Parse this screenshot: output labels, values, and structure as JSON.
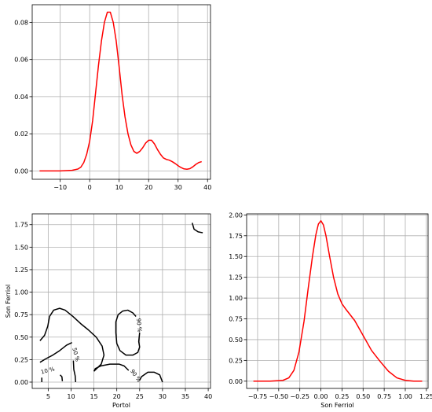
{
  "chart_data": [
    {
      "type": "line",
      "title": "",
      "xlabel": "",
      "ylabel": "",
      "xlim": [
        -19.5,
        41
      ],
      "ylim": [
        -0.0045,
        0.0895
      ],
      "xticks": [
        -10,
        0,
        10,
        20,
        30,
        40
      ],
      "yticks": [
        0.0,
        0.02,
        0.04,
        0.06,
        0.08
      ],
      "xtick_labels": [
        "−10",
        "0",
        "10",
        "20",
        "30",
        "40"
      ],
      "ytick_labels": [
        "0.00",
        "0.02",
        "0.04",
        "0.06",
        "0.08"
      ],
      "grid": true,
      "color": "#ff0000",
      "series": [
        {
          "x": [
            -17,
            -10,
            -6,
            -4,
            -3,
            -2,
            -1,
            0,
            1,
            2,
            3,
            4,
            5,
            6,
            7,
            8,
            9,
            10,
            11,
            12,
            13,
            14,
            15,
            16,
            17,
            18,
            19,
            20,
            21,
            22,
            23,
            24,
            25,
            26,
            27,
            28,
            29,
            30,
            31,
            32,
            33,
            34,
            35,
            36,
            37,
            38
          ],
          "y": [
            0.0,
            0.0,
            0.0003,
            0.001,
            0.002,
            0.0045,
            0.009,
            0.016,
            0.027,
            0.042,
            0.057,
            0.07,
            0.08,
            0.0855,
            0.0855,
            0.08,
            0.07,
            0.056,
            0.041,
            0.029,
            0.02,
            0.014,
            0.0105,
            0.0095,
            0.0105,
            0.0125,
            0.015,
            0.0165,
            0.0165,
            0.0145,
            0.0115,
            0.009,
            0.007,
            0.0062,
            0.0058,
            0.005,
            0.004,
            0.0028,
            0.0018,
            0.0011,
            0.0009,
            0.0012,
            0.0022,
            0.0035,
            0.0045,
            0.005
          ]
        }
      ]
    },
    {
      "type": "contour",
      "title": "",
      "xlabel": "Portol",
      "ylabel": "Son Ferriol",
      "xlim": [
        1.5,
        40.5
      ],
      "ylim": [
        -0.07,
        1.87
      ],
      "xticks": [
        5,
        10,
        15,
        20,
        25,
        30,
        35,
        40
      ],
      "yticks": [
        0.0,
        0.25,
        0.5,
        0.75,
        1.0,
        1.25,
        1.5,
        1.75
      ],
      "xtick_labels": [
        "5",
        "10",
        "15",
        "20",
        "25",
        "30",
        "35",
        "40"
      ],
      "ytick_labels": [
        "0.00",
        "0.25",
        "0.50",
        "0.75",
        "1.00",
        "1.25",
        "1.50",
        "1.75"
      ],
      "grid": true,
      "color": "#000000",
      "contours": [
        {
          "points": [
            [
              3.2,
              0.46
            ],
            [
              4.2,
              0.52
            ],
            [
              4.9,
              0.62
            ],
            [
              5.3,
              0.73
            ],
            [
              6.2,
              0.8
            ],
            [
              7.5,
              0.82
            ],
            [
              8.7,
              0.8
            ],
            [
              10.4,
              0.73
            ],
            [
              12.1,
              0.65
            ],
            [
              13.8,
              0.58
            ],
            [
              15.5,
              0.5
            ],
            [
              16.8,
              0.4
            ],
            [
              17.2,
              0.3
            ],
            [
              16.6,
              0.2
            ],
            [
              15.6,
              0.15
            ],
            [
              15.0,
              0.12
            ]
          ]
        },
        {
          "points": [
            [
              15.0,
              0.12
            ],
            [
              15.3,
              0.15
            ],
            [
              16.5,
              0.18
            ],
            [
              18.5,
              0.2
            ],
            [
              20.5,
              0.2
            ],
            [
              21.6,
              0.18
            ],
            [
              22.6,
              0.13
            ]
          ]
        },
        {
          "points": [
            [
              3.2,
              0.22
            ],
            [
              4.5,
              0.26
            ],
            [
              6.0,
              0.3
            ],
            [
              7.5,
              0.35
            ],
            [
              9.0,
              0.41
            ],
            [
              10.2,
              0.44
            ]
          ]
        },
        {
          "points": [
            [
              10.5,
              0.24
            ],
            [
              10.6,
              0.14
            ],
            [
              10.9,
              0.07
            ],
            [
              11.0,
              0.0
            ]
          ]
        },
        {
          "points": [
            [
              3.6,
              0.05
            ],
            [
              3.6,
              0.0
            ]
          ]
        },
        {
          "points": [
            [
              7.6,
              0.08
            ],
            [
              8.0,
              0.06
            ],
            [
              8.1,
              0.01
            ]
          ]
        },
        {
          "points": [
            [
              25.0,
              0.55
            ],
            [
              24.8,
              0.45
            ],
            [
              25.0,
              0.39
            ],
            [
              24.6,
              0.33
            ],
            [
              23.5,
              0.3
            ],
            [
              22.0,
              0.3
            ],
            [
              20.7,
              0.35
            ],
            [
              20.0,
              0.43
            ],
            [
              19.8,
              0.55
            ],
            [
              19.8,
              0.67
            ],
            [
              20.3,
              0.75
            ],
            [
              21.3,
              0.79
            ],
            [
              22.4,
              0.8
            ],
            [
              23.5,
              0.77
            ],
            [
              24.2,
              0.73
            ]
          ]
        },
        {
          "points": [
            [
              25.0,
              0.02
            ],
            [
              25.4,
              0.06
            ],
            [
              26.8,
              0.11
            ],
            [
              28.2,
              0.11
            ],
            [
              29.4,
              0.08
            ],
            [
              30.0,
              0.0
            ]
          ]
        },
        {
          "points": [
            [
              36.5,
              1.77
            ],
            [
              36.9,
              1.7
            ],
            [
              37.8,
              1.67
            ],
            [
              38.8,
              1.66
            ]
          ]
        }
      ],
      "labels": [
        {
          "text": "10 %",
          "x": 5.0,
          "y": 0.11
        },
        {
          "text": "50 %",
          "x": 10.7,
          "y": 0.3
        },
        {
          "text": "90 %",
          "x": 24.5,
          "y": 0.63
        },
        {
          "text": "90 %",
          "x": 23.8,
          "y": 0.06
        }
      ]
    },
    {
      "type": "line",
      "title": "",
      "xlabel": "Son Ferriol",
      "ylabel": "",
      "xlim": [
        -0.88,
        1.27
      ],
      "ylim": [
        -0.087,
        2.013
      ],
      "xticks": [
        -0.75,
        -0.5,
        -0.25,
        0.0,
        0.25,
        0.5,
        0.75,
        1.0,
        1.25
      ],
      "yticks": [
        0.0,
        0.25,
        0.5,
        0.75,
        1.0,
        1.25,
        1.5,
        1.75,
        2.0
      ],
      "xtick_labels": [
        "−0.75",
        "−0.50",
        "−0.25",
        "0.00",
        "0.25",
        "0.50",
        "0.75",
        "1.00",
        "1.25"
      ],
      "ytick_labels": [
        "0.00",
        "0.25",
        "0.50",
        "0.75",
        "1.00",
        "1.25",
        "1.50",
        "1.75",
        "2.00"
      ],
      "grid": true,
      "color": "#ff0000",
      "series": [
        {
          "x": [
            -0.8,
            -0.6,
            -0.45,
            -0.38,
            -0.32,
            -0.26,
            -0.2,
            -0.15,
            -0.1,
            -0.06,
            -0.03,
            0.0,
            0.03,
            0.06,
            0.1,
            0.15,
            0.2,
            0.25,
            0.3,
            0.4,
            0.5,
            0.6,
            0.7,
            0.8,
            0.9,
            1.0,
            1.1,
            1.2
          ],
          "y": [
            0.0,
            0.0,
            0.01,
            0.04,
            0.13,
            0.35,
            0.72,
            1.12,
            1.5,
            1.76,
            1.89,
            1.93,
            1.88,
            1.75,
            1.52,
            1.25,
            1.05,
            0.93,
            0.86,
            0.73,
            0.55,
            0.37,
            0.24,
            0.12,
            0.04,
            0.01,
            0.0,
            0.0
          ]
        }
      ]
    }
  ]
}
